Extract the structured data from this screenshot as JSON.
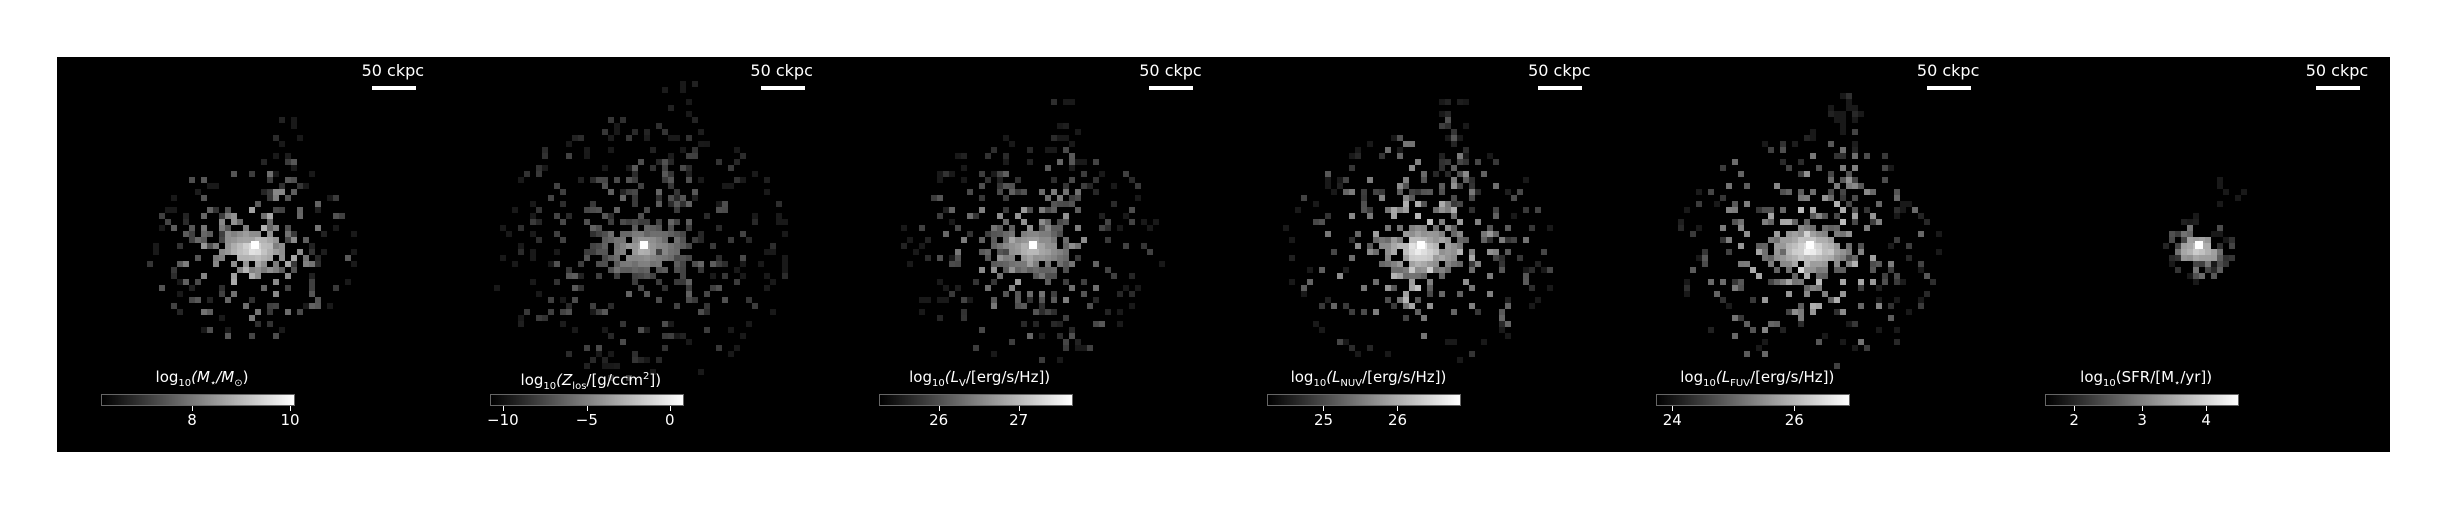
{
  "scale_bar_label": "50 ckpc",
  "panels": [
    {
      "label_parts": [
        "log",
        "10",
        "(M",
        "⋆",
        "/M",
        "⊙",
        ")"
      ],
      "ticks": [
        {
          "label": "8",
          "pos": 0.47
        },
        {
          "label": "10",
          "pos": 0.97
        }
      ]
    },
    {
      "label_parts": [
        "log",
        "10",
        "(Z",
        "los",
        "/[g/ccm",
        "2",
        "])"
      ],
      "ticks": [
        {
          "label": "−10",
          "pos": 0.07
        },
        {
          "label": "−5",
          "pos": 0.5
        },
        {
          "label": "0",
          "pos": 0.93
        }
      ]
    },
    {
      "label_parts": [
        "log",
        "10",
        "(L",
        "V",
        "/[erg/s/Hz])"
      ],
      "ticks": [
        {
          "label": "26",
          "pos": 0.31
        },
        {
          "label": "27",
          "pos": 0.72
        }
      ]
    },
    {
      "label_parts": [
        "log",
        "10",
        "(L",
        "NUV",
        "/[erg/s/Hz])"
      ],
      "ticks": [
        {
          "label": "25",
          "pos": 0.29
        },
        {
          "label": "26",
          "pos": 0.67
        }
      ]
    },
    {
      "label_parts": [
        "log",
        "10",
        "(L",
        "FUV",
        "/[erg/s/Hz])"
      ],
      "ticks": [
        {
          "label": "24",
          "pos": 0.08
        },
        {
          "label": "26",
          "pos": 0.71
        }
      ]
    },
    {
      "label_parts": [
        "log",
        "10",
        "(SFR/[M",
        "⋆",
        "/yr])"
      ],
      "ticks": [
        {
          "label": "2",
          "pos": 0.15
        },
        {
          "label": "3",
          "pos": 0.5
        },
        {
          "label": "4",
          "pos": 0.83
        }
      ]
    }
  ]
}
